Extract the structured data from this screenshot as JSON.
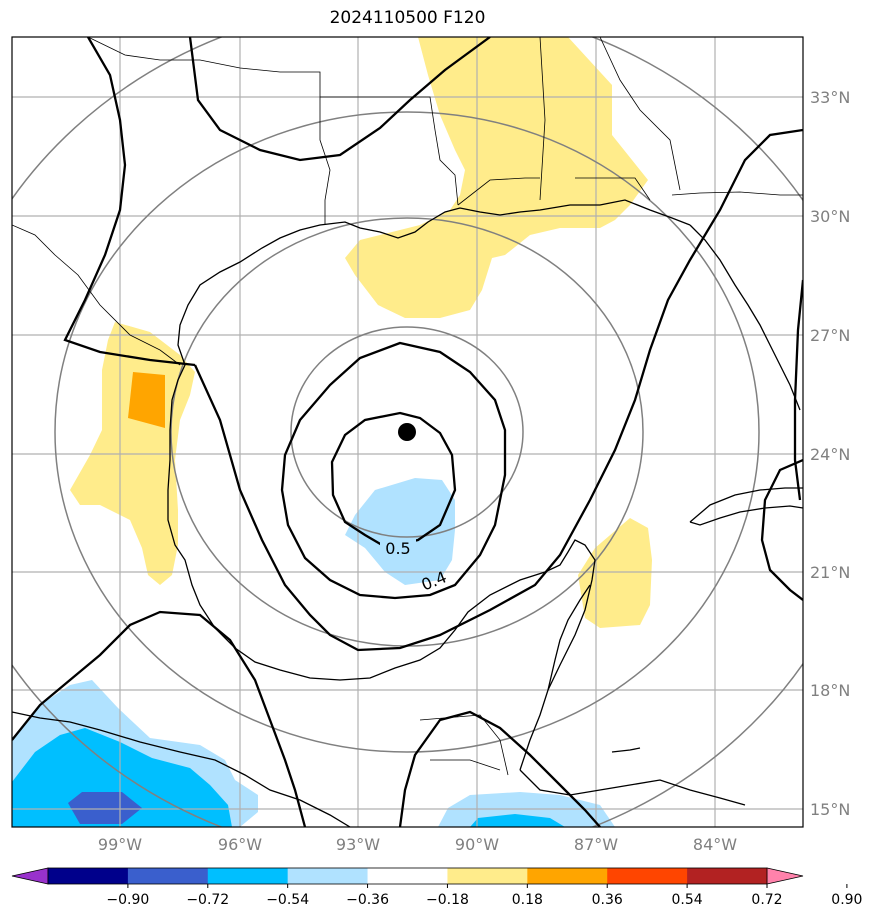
{
  "title": "2024110500 F120",
  "latitude_labels": [
    "33°N",
    "30°N",
    "27°N",
    "24°N",
    "21°N",
    "18°N",
    "15°N"
  ],
  "longitude_labels": [
    "99°W",
    "96°W",
    "93°W",
    "90°W",
    "87°W",
    "84°W"
  ],
  "contour_labels": [
    "0.5",
    "0.4"
  ],
  "colorbar": {
    "tick_labels": [
      "−0.90",
      "−0.72",
      "−0.54",
      "−0.36",
      "−0.18",
      "0.18",
      "0.36",
      "0.54",
      "0.72",
      "0.90"
    ],
    "colors": [
      "#9932CC",
      "#00008B",
      "#3A5FCD",
      "#00BFFF",
      "#B0E2FF",
      "#FFFFFF",
      "#FFEC8B",
      "#FFA500",
      "#FF4500",
      "#B22222",
      "#FF82AB"
    ]
  },
  "colors": {
    "positive_light": "#FFEC8B",
    "positive_medium": "#FFA500",
    "negative_light": "#B0E2FF",
    "negative_medium": "#00BFFF",
    "negative_strong": "#3A5FCD"
  },
  "center_marker": "storm-center-dot"
}
